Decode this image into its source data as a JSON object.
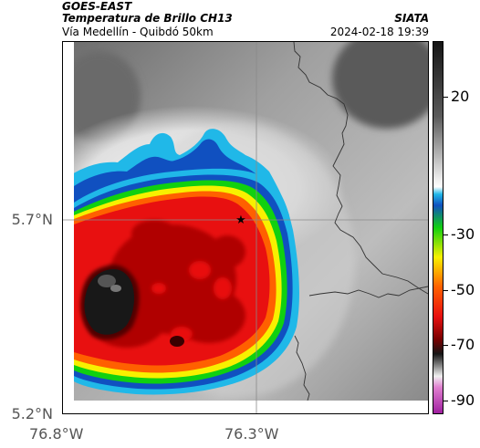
{
  "header": {
    "satellite": "GOES-EAST",
    "product": "Temperatura de Brillo CH13",
    "region": "Vía Medellín - Quibdó 50km",
    "organization": "SIATA",
    "datetime": "2024-02-18 19:39"
  },
  "axes": {
    "lat_labels": [
      "5.7°N",
      "5.2°N"
    ],
    "lon_labels": [
      "76.8°W",
      "76.3°W"
    ]
  },
  "colorbar": {
    "tick_labels": [
      "20",
      "-30",
      "-50",
      "-70",
      "-90"
    ],
    "tick_values": [
      20,
      -30,
      -50,
      -70,
      -90
    ],
    "range": [
      -95,
      40
    ]
  },
  "map": {
    "marker_icon": "star-icon",
    "colors": {
      "core": "#181818",
      "deep_red": "#b00000",
      "red": "#e81010",
      "orange": "#ff6000",
      "yellow": "#f8f000",
      "green": "#10d010",
      "blue": "#1050c0",
      "cyan": "#20b8e8",
      "clear_sky": "#a8a8a8"
    }
  }
}
